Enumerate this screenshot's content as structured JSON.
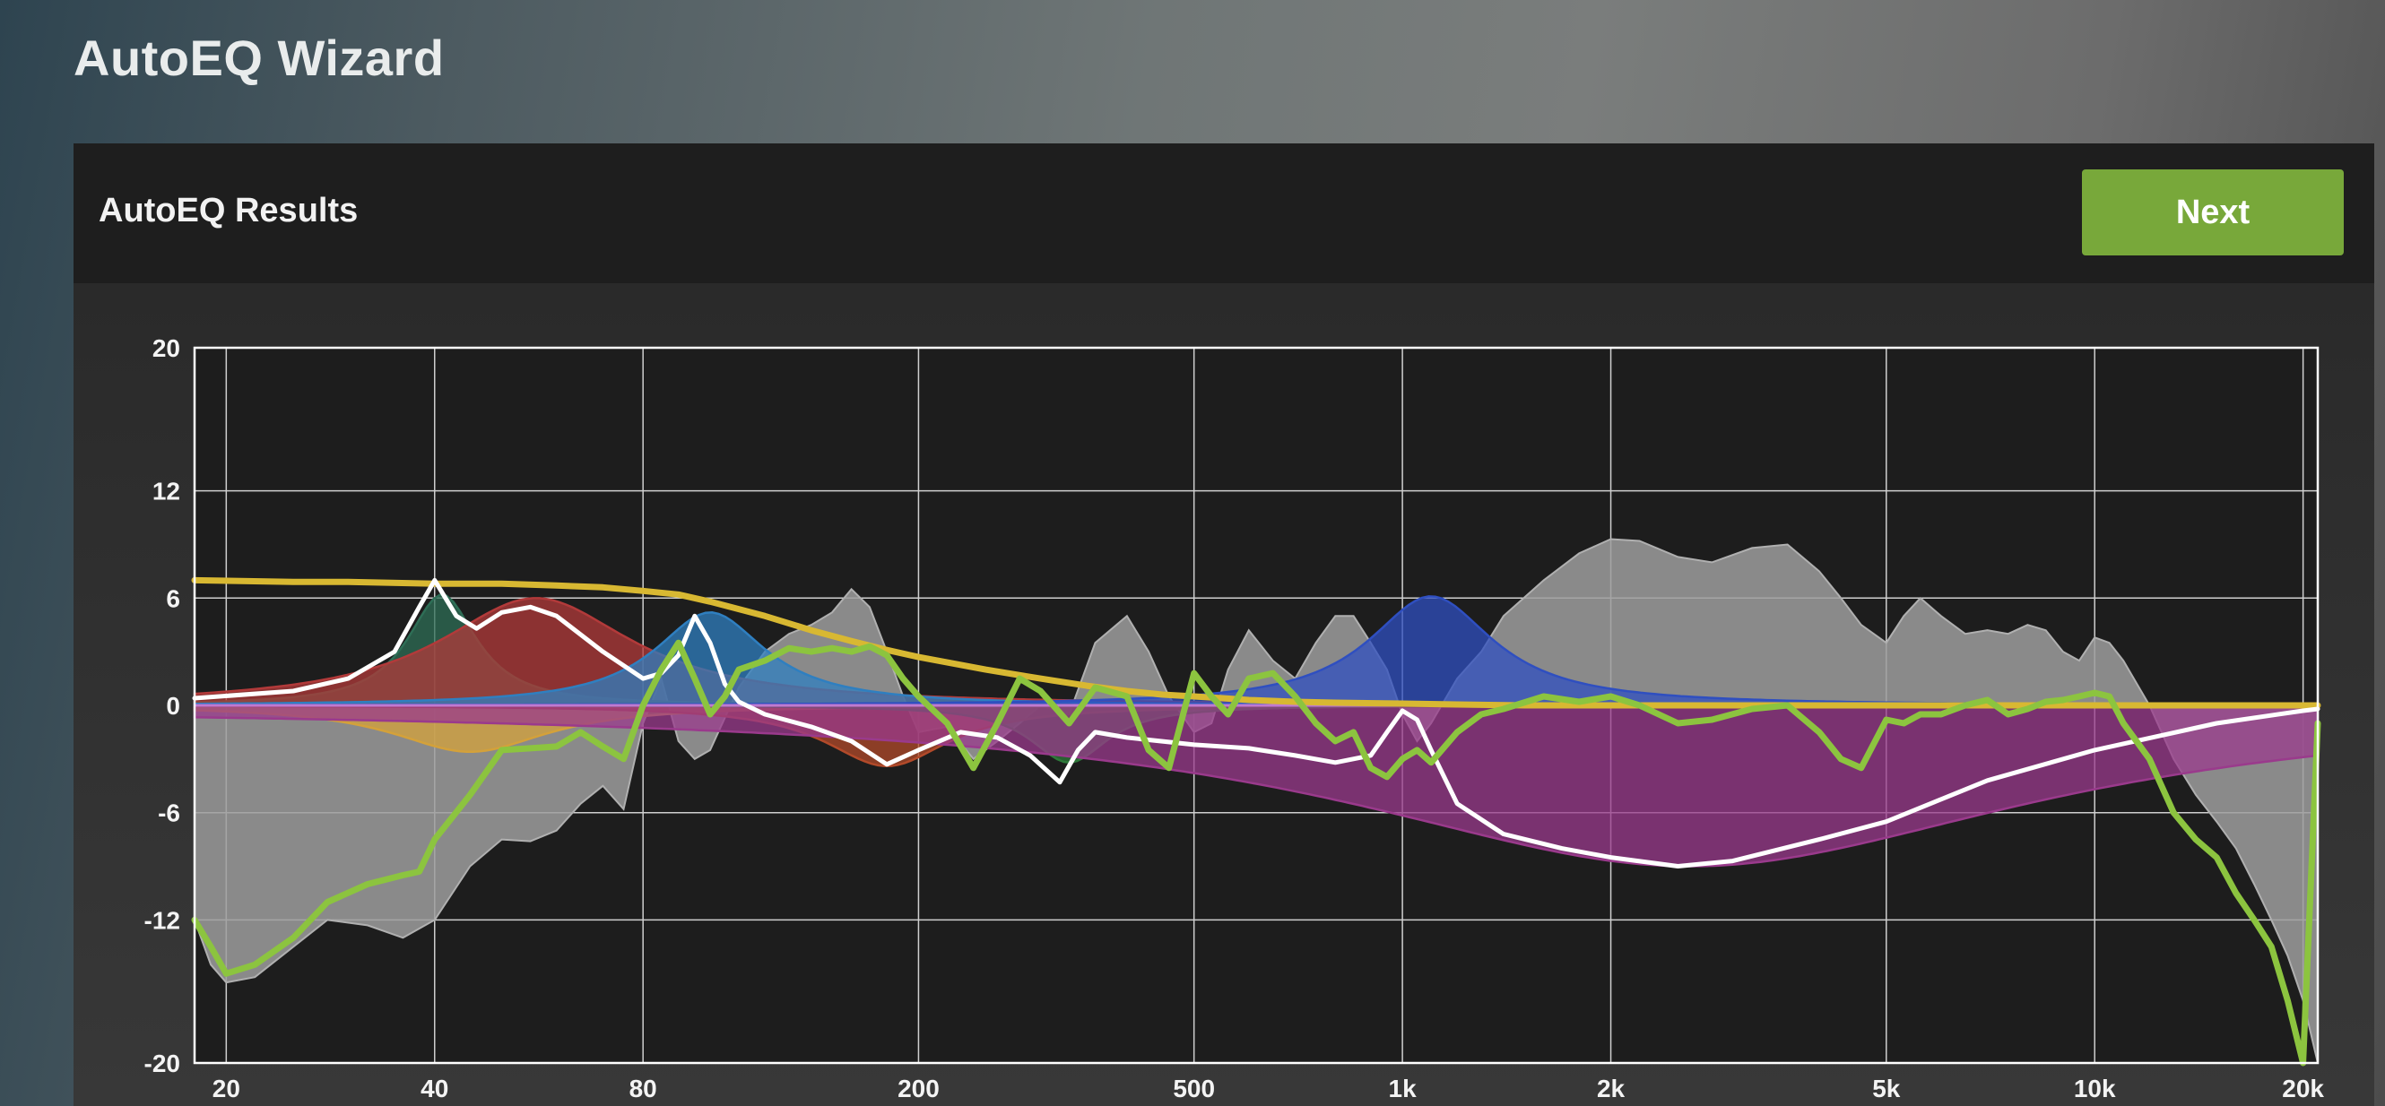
{
  "app_title": "AutoEQ Wizard",
  "panel": {
    "title": "AutoEQ Results",
    "next_label": "Next"
  },
  "colors": {
    "accent_green": "#78a83a",
    "measured_response": "#9e9e9e",
    "corrected_curve": "#8cc43f",
    "target_curve": "#d8b832",
    "eq_total": "#ffffff",
    "band_colors": [
      "#2e6e56",
      "#b23a3a",
      "#d4a13a",
      "#2f7fc0",
      "#b24a2a",
      "#2e7a3a",
      "#2f4fc0",
      "#9a3a8c"
    ]
  },
  "chart_data": {
    "type": "line",
    "x_scale": "log",
    "xlim": [
      18,
      21000
    ],
    "ylim": [
      -20,
      20
    ],
    "x_ticks": [
      {
        "value": 20,
        "label": "20"
      },
      {
        "value": 40,
        "label": "40"
      },
      {
        "value": 80,
        "label": "80"
      },
      {
        "value": 200,
        "label": "200"
      },
      {
        "value": 500,
        "label": "500"
      },
      {
        "value": 1000,
        "label": "1k"
      },
      {
        "value": 2000,
        "label": "2k"
      },
      {
        "value": 5000,
        "label": "5k"
      },
      {
        "value": 10000,
        "label": "10k"
      },
      {
        "value": 20000,
        "label": "20k"
      }
    ],
    "y_ticks": [
      {
        "value": 20,
        "label": "20"
      },
      {
        "value": 12,
        "label": "12"
      },
      {
        "value": 6,
        "label": "6"
      },
      {
        "value": 0,
        "label": "0"
      },
      {
        "value": -6,
        "label": "-6"
      },
      {
        "value": -12,
        "label": "-12"
      },
      {
        "value": -20,
        "label": "-20"
      }
    ],
    "grid": true,
    "series": [
      {
        "key": "measured",
        "fill": true,
        "x": [
          18,
          19,
          20,
          22,
          25,
          28,
          32,
          36,
          40,
          45,
          50,
          55,
          60,
          65,
          70,
          75,
          80,
          85,
          90,
          95,
          100,
          110,
          120,
          130,
          140,
          150,
          160,
          170,
          180,
          190,
          200,
          220,
          240,
          260,
          280,
          300,
          330,
          360,
          400,
          430,
          460,
          500,
          530,
          560,
          600,
          650,
          700,
          750,
          800,
          850,
          900,
          950,
          1000,
          1050,
          1100,
          1200,
          1300,
          1400,
          1600,
          1800,
          2000,
          2200,
          2500,
          2800,
          3200,
          3600,
          4000,
          4300,
          4600,
          5000,
          5300,
          5600,
          6000,
          6500,
          7000,
          7500,
          8000,
          8500,
          9000,
          9500,
          10000,
          10500,
          11000,
          12000,
          13000,
          14000,
          15000,
          16000,
          17000,
          18000,
          19000,
          20000,
          21000
        ],
        "y": [
          -12,
          -14.5,
          -15.5,
          -15.2,
          -13.5,
          -12,
          -12.3,
          -13,
          -12,
          -9,
          -7.5,
          -7.6,
          -7,
          -5.5,
          -4.5,
          -5.8,
          -1,
          1.5,
          -2,
          -3,
          -2.5,
          1,
          3,
          4,
          4.5,
          5.2,
          6.5,
          5.5,
          3,
          0.5,
          -1.5,
          -1.2,
          -3,
          -2,
          -1,
          0,
          -0.5,
          3.5,
          5,
          3,
          0.5,
          -1.5,
          -1,
          2,
          4.2,
          2.5,
          1.5,
          3.5,
          5,
          5,
          3.5,
          2,
          -0.5,
          -2,
          -1,
          1.5,
          3,
          5,
          7,
          8.5,
          9.3,
          9.2,
          8.3,
          8,
          8.8,
          9,
          7.5,
          6,
          4.5,
          3.5,
          5,
          6,
          5,
          4,
          4.2,
          4,
          4.5,
          4.2,
          3,
          2.5,
          3.8,
          3.5,
          2.5,
          0,
          -3,
          -5,
          -6.5,
          -8,
          -10,
          -12,
          -14,
          -16.5,
          -20
        ]
      },
      {
        "key": "target",
        "fill": false,
        "x": [
          18,
          25,
          30,
          40,
          50,
          60,
          70,
          80,
          90,
          100,
          120,
          140,
          160,
          180,
          200,
          250,
          300,
          350,
          400,
          450,
          500,
          550,
          600,
          700,
          800,
          1000,
          1200,
          1500,
          2000,
          5000,
          10000,
          20000,
          21000
        ],
        "y": [
          7,
          6.9,
          6.9,
          6.8,
          6.8,
          6.7,
          6.6,
          6.4,
          6.2,
          5.8,
          5,
          4.2,
          3.6,
          3.1,
          2.7,
          2,
          1.5,
          1.1,
          0.8,
          0.6,
          0.5,
          0.4,
          0.3,
          0.2,
          0.15,
          0.1,
          0.05,
          0,
          0,
          0,
          0,
          0,
          0
        ]
      },
      {
        "key": "eq_total",
        "fill": false,
        "x": [
          18,
          25,
          30,
          35,
          38,
          40,
          43,
          46,
          50,
          55,
          60,
          70,
          80,
          85,
          90,
          95,
          100,
          105,
          110,
          120,
          140,
          160,
          180,
          200,
          230,
          260,
          290,
          320,
          340,
          360,
          400,
          500,
          600,
          700,
          800,
          900,
          950,
          1000,
          1050,
          1100,
          1200,
          1400,
          1700,
          2000,
          2500,
          3000,
          4000,
          5000,
          7000,
          10000,
          15000,
          20000,
          21000
        ],
        "y": [
          0.4,
          0.8,
          1.5,
          3,
          5.5,
          7,
          5,
          4.3,
          5.2,
          5.5,
          5,
          3,
          1.5,
          1.8,
          2.8,
          5,
          3.5,
          1.2,
          0.2,
          -0.5,
          -1.2,
          -2,
          -3.3,
          -2.5,
          -1.5,
          -1.8,
          -2.8,
          -4.3,
          -2.5,
          -1.5,
          -1.8,
          -2.2,
          -2.4,
          -2.8,
          -3.2,
          -2.8,
          -1.5,
          -0.3,
          -0.8,
          -2.5,
          -5.5,
          -7.2,
          -8,
          -8.5,
          -9,
          -8.7,
          -7.5,
          -6.5,
          -4.2,
          -2.5,
          -1,
          -0.3,
          -0.2
        ]
      },
      {
        "key": "corrected",
        "fill": false,
        "x": [
          18,
          19,
          20,
          22,
          25,
          28,
          32,
          36,
          38,
          40,
          45,
          50,
          55,
          60,
          65,
          70,
          75,
          80,
          85,
          90,
          95,
          100,
          105,
          110,
          120,
          130,
          140,
          150,
          160,
          170,
          180,
          190,
          200,
          220,
          240,
          260,
          280,
          300,
          330,
          360,
          400,
          430,
          460,
          500,
          530,
          560,
          600,
          650,
          700,
          750,
          800,
          850,
          900,
          950,
          1000,
          1050,
          1100,
          1200,
          1300,
          1400,
          1600,
          1800,
          2000,
          2200,
          2500,
          2800,
          3200,
          3600,
          4000,
          4300,
          4600,
          5000,
          5300,
          5600,
          6000,
          6500,
          7000,
          7500,
          8000,
          8500,
          9000,
          9500,
          10000,
          10500,
          11000,
          12000,
          13000,
          14000,
          15000,
          16000,
          17000,
          18000,
          19000,
          20000,
          21000
        ],
        "y": [
          -12,
          -13.5,
          -15,
          -14.5,
          -13,
          -11,
          -10,
          -9.5,
          -9.3,
          -7.5,
          -5,
          -2.5,
          -2.4,
          -2.3,
          -1.5,
          -2.3,
          -3,
          0,
          2,
          3.5,
          1.5,
          -0.5,
          0.5,
          2,
          2.5,
          3.2,
          3,
          3.2,
          3,
          3.3,
          2.8,
          1.5,
          0.5,
          -1,
          -3.5,
          -1,
          1.5,
          0.8,
          -1,
          1,
          0.5,
          -2.5,
          -3.5,
          1.8,
          0.5,
          -0.5,
          1.5,
          1.8,
          0.5,
          -1,
          -2,
          -1.5,
          -3.5,
          -4,
          -3,
          -2.5,
          -3.2,
          -1.5,
          -0.5,
          -0.2,
          0.5,
          0.2,
          0.5,
          0,
          -1,
          -0.8,
          -0.2,
          0,
          -1.5,
          -3,
          -3.5,
          -0.8,
          -1,
          -0.5,
          -0.5,
          0,
          0.3,
          -0.5,
          -0.2,
          0.2,
          0.3,
          0.5,
          0.7,
          0.5,
          -1,
          -3,
          -6,
          -7.5,
          -8.5,
          -10.5,
          -12,
          -13.5,
          -16.5,
          -20,
          -1
        ]
      }
    ],
    "bands": [
      {
        "freq": 41,
        "gain": 6.2,
        "q": 4.5
      },
      {
        "freq": 56,
        "gain": 6,
        "q": 1.6
      },
      {
        "freq": 45,
        "gain": -2.6,
        "q": 2.0
      },
      {
        "freq": 100,
        "gain": 5.2,
        "q": 2.8
      },
      {
        "freq": 180,
        "gain": -3.4,
        "q": 2.5
      },
      {
        "freq": 330,
        "gain": -3.2,
        "q": 4.0
      },
      {
        "freq": 1100,
        "gain": 6.1,
        "q": 2.5
      },
      {
        "freq": 2600,
        "gain": -9,
        "q": 0.45
      }
    ]
  }
}
